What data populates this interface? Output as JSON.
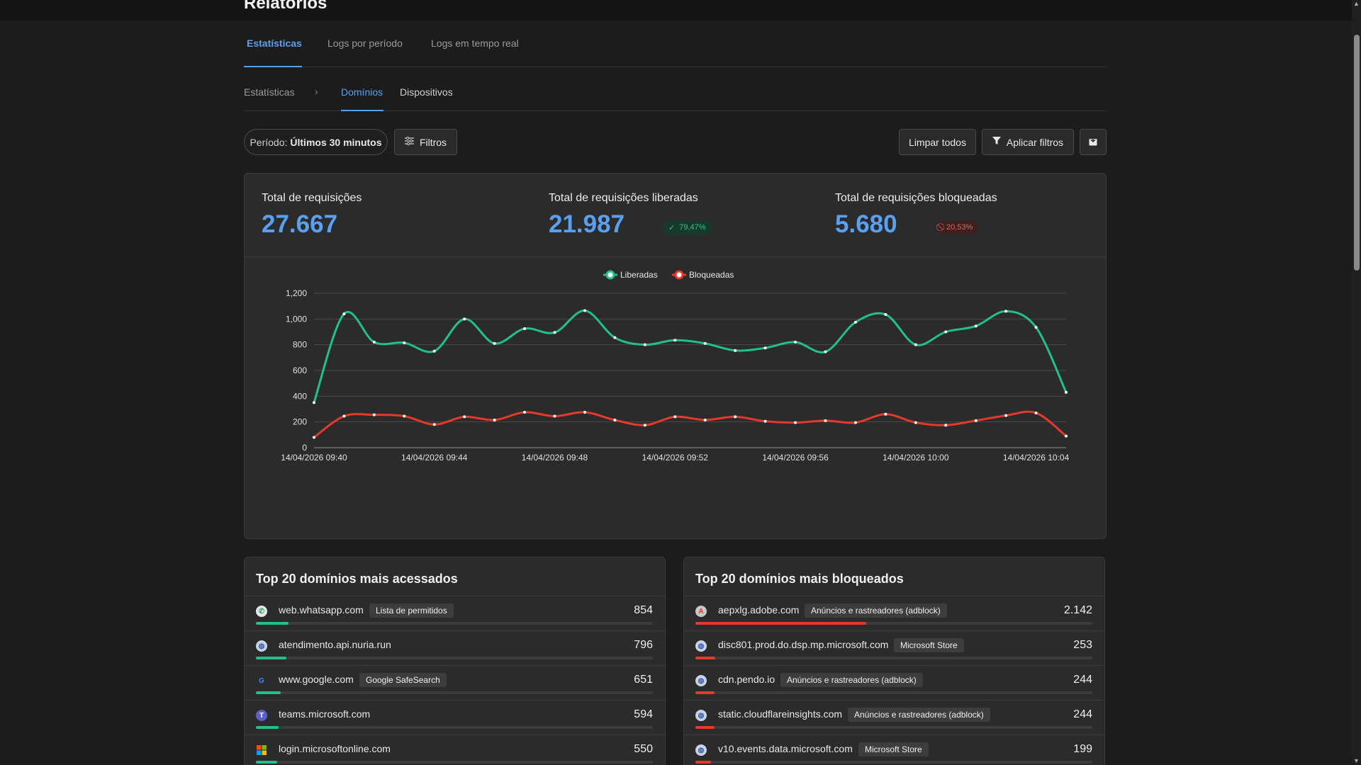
{
  "header": {
    "title": "Relatórios"
  },
  "tabs": [
    {
      "label": "Estatísticas",
      "active": true
    },
    {
      "label": "Logs por período",
      "active": false
    },
    {
      "label": "Logs em tempo real",
      "active": false
    }
  ],
  "subnav": {
    "breadcrumb_root": "Estatísticas",
    "items": [
      {
        "label": "Domínios",
        "active": true
      },
      {
        "label": "Dispositivos",
        "active": false
      }
    ]
  },
  "filters": {
    "period_label": "Período:",
    "period_value": "Últimos 30 minutos",
    "filters_button": "Filtros",
    "clear_button": "Limpar todos",
    "apply_button": "Aplicar filtros",
    "export_icon": "export-icon"
  },
  "stats": {
    "total": {
      "label": "Total de requisições",
      "value": "27.667"
    },
    "allowed": {
      "label": "Total de requisições liberadas",
      "value": "21.987",
      "percent": "79,47%"
    },
    "blocked": {
      "label": "Total de requisições bloqueadas",
      "value": "5.680",
      "percent": "20,53%"
    }
  },
  "colors": {
    "accent": "#5aa0f0",
    "allowed": "#22c08a",
    "blocked": "#e5392b"
  },
  "chart_data": {
    "type": "line",
    "title": "",
    "xlabel": "",
    "ylabel": "",
    "ylim": [
      0,
      1200
    ],
    "yticks": [
      "0",
      "200",
      "400",
      "600",
      "800",
      "1,000",
      "1,200"
    ],
    "xtick_labels": [
      "14/04/2026 09:40",
      "14/04/2026 09:44",
      "14/04/2026 09:48",
      "14/04/2026 09:52",
      "14/04/2026 09:56",
      "14/04/2026 10:00",
      "14/04/2026 10:04"
    ],
    "x": [
      "09:40",
      "09:41",
      "09:42",
      "09:43",
      "09:44",
      "09:45",
      "09:46",
      "09:47",
      "09:48",
      "09:49",
      "09:50",
      "09:51",
      "09:52",
      "09:53",
      "09:54",
      "09:55",
      "09:56",
      "09:57",
      "09:58",
      "09:59",
      "10:00",
      "10:01",
      "10:02",
      "10:03",
      "10:04",
      "10:05"
    ],
    "legend_position": "top-center",
    "grid": true,
    "series": [
      {
        "name": "Liberadas",
        "color": "#22c08a",
        "values": [
          350,
          1040,
          820,
          815,
          750,
          1000,
          810,
          925,
          895,
          1065,
          855,
          800,
          835,
          810,
          755,
          775,
          820,
          745,
          975,
          1035,
          800,
          900,
          945,
          1060,
          935,
          430
        ]
      },
      {
        "name": "Bloqueadas",
        "color": "#e5392b",
        "values": [
          80,
          245,
          255,
          245,
          180,
          240,
          215,
          275,
          245,
          275,
          215,
          175,
          240,
          215,
          240,
          205,
          195,
          210,
          195,
          260,
          195,
          175,
          210,
          250,
          270,
          90
        ]
      }
    ]
  },
  "top_accessed": {
    "title": "Top 20 domínios mais acessados",
    "rows": [
      {
        "domain": "web.whatsapp.com",
        "tag": "Lista de permitidos",
        "count": "854",
        "fraction": 0.082,
        "icon": "whatsapp-icon"
      },
      {
        "domain": "atendimento.api.nuria.run",
        "tag": "",
        "count": "796",
        "fraction": 0.076,
        "icon": "globe-icon"
      },
      {
        "domain": "www.google.com",
        "tag": "Google SafeSearch",
        "count": "651",
        "fraction": 0.062,
        "icon": "google-icon"
      },
      {
        "domain": "teams.microsoft.com",
        "tag": "",
        "count": "594",
        "fraction": 0.057,
        "icon": "teams-icon"
      },
      {
        "domain": "login.microsoftonline.com",
        "tag": "",
        "count": "550",
        "fraction": 0.053,
        "icon": "microsoft-icon"
      }
    ]
  },
  "top_blocked": {
    "title": "Top 20 domínios mais bloqueados",
    "rows": [
      {
        "domain": "aepxlg.adobe.com",
        "tag": "Anúncios e rastreadores (adblock)",
        "count": "2.142",
        "fraction": 0.43,
        "icon": "adobe-icon"
      },
      {
        "domain": "disc801.prod.do.dsp.mp.microsoft.com",
        "tag": "Microsoft Store",
        "count": "253",
        "fraction": 0.05,
        "icon": "globe-icon"
      },
      {
        "domain": "cdn.pendo.io",
        "tag": "Anúncios e rastreadores (adblock)",
        "count": "244",
        "fraction": 0.049,
        "icon": "globe-icon"
      },
      {
        "domain": "static.cloudflareinsights.com",
        "tag": "Anúncios e rastreadores (adblock)",
        "count": "244",
        "fraction": 0.049,
        "icon": "globe-icon"
      },
      {
        "domain": "v10.events.data.microsoft.com",
        "tag": "Microsoft Store",
        "count": "199",
        "fraction": 0.04,
        "icon": "globe-icon"
      }
    ]
  }
}
